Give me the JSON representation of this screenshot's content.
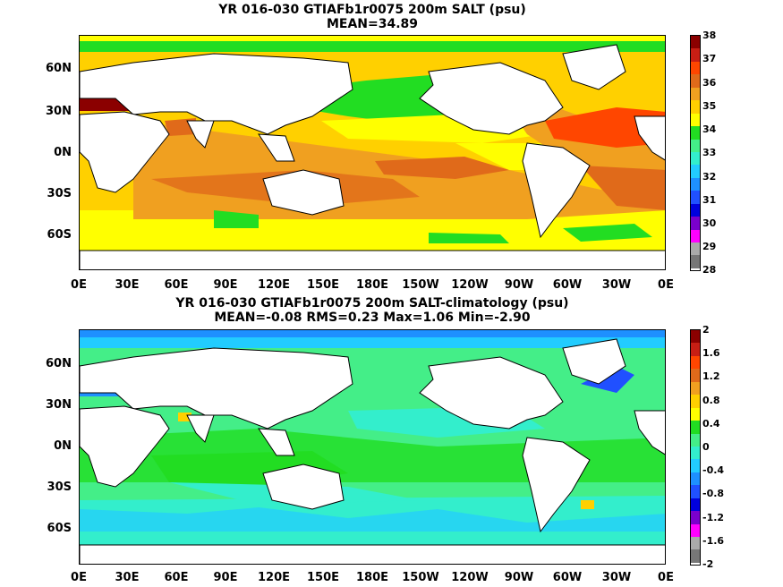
{
  "panel1": {
    "title": "YR 016-030 GTIAFb1r0075 200m SALT (psu)",
    "stats": "MEAN=34.89",
    "lat_labels": [
      "60N",
      "30N",
      "0N",
      "30S",
      "60S"
    ],
    "lon_labels": [
      "0E",
      "30E",
      "60E",
      "90E",
      "120E",
      "150E",
      "180E",
      "150W",
      "120W",
      "90W",
      "60W",
      "30W",
      "0E"
    ],
    "colorbar_labels": [
      "38",
      "37",
      "36",
      "35",
      "34",
      "33",
      "32",
      "31",
      "30",
      "29",
      "28"
    ],
    "colorbar_colors": [
      "#8b0000",
      "#c81e14",
      "#ff4600",
      "#e06a1a",
      "#f0a020",
      "#ffd000",
      "#ffff00",
      "#22dd22",
      "#44ee88",
      "#33eecc",
      "#22ccff",
      "#1e90ff",
      "#2050ff",
      "#0000dd",
      "#7a00cc",
      "#ff00ff",
      "#aaaaaa",
      "#777777"
    ]
  },
  "panel2": {
    "title": "YR 016-030 GTIAFb1r0075 200m SALT-climatology (psu)",
    "stats": "MEAN=-0.08   RMS=0.23   Max=1.06   Min=-2.90",
    "lat_labels": [
      "60N",
      "30N",
      "0N",
      "30S",
      "60S"
    ],
    "lon_labels": [
      "0E",
      "30E",
      "60E",
      "90E",
      "120E",
      "150E",
      "180E",
      "150W",
      "120W",
      "90W",
      "60W",
      "30W",
      "0E"
    ],
    "colorbar_labels": [
      "2",
      "1.6",
      "1.2",
      "0.8",
      "0.4",
      "0",
      "-0.4",
      "-0.8",
      "-1.2",
      "-1.6",
      "-2"
    ],
    "colorbar_colors": [
      "#8b0000",
      "#c81e14",
      "#ff4600",
      "#e06a1a",
      "#f0a020",
      "#ffd000",
      "#ffff00",
      "#22dd22",
      "#44ee88",
      "#33eecc",
      "#22ccff",
      "#1e90ff",
      "#2050ff",
      "#0000dd",
      "#7a00cc",
      "#ff00ff",
      "#aaaaaa",
      "#777777"
    ]
  }
}
